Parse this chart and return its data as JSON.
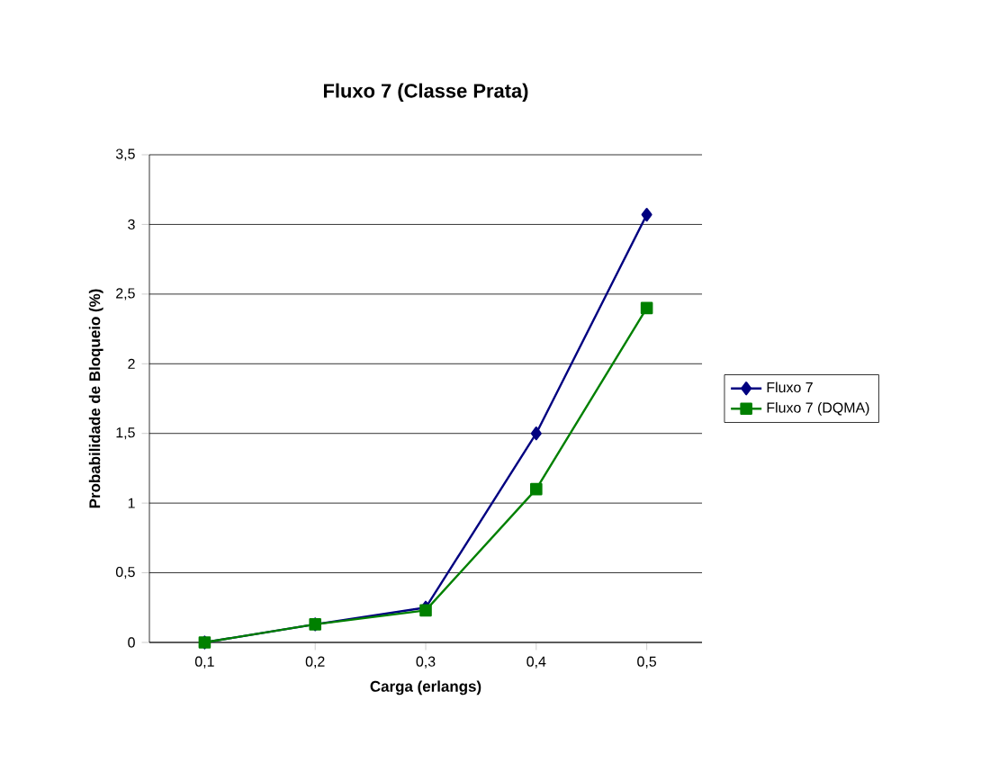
{
  "chart_data": {
    "type": "line",
    "title": "Fluxo 7 (Classe Prata)",
    "xlabel": "Carga (erlangs)",
    "ylabel": "Probabilidade de Bloqueio (%)",
    "categories": [
      "0,1",
      "0,2",
      "0,3",
      "0,4",
      "0,5"
    ],
    "series": [
      {
        "name": "Fluxo 7",
        "color": "#000080",
        "marker": "diamond",
        "values": [
          0,
          0.13,
          0.25,
          1.5,
          3.07
        ]
      },
      {
        "name": "Fluxo 7 (DQMA)",
        "color": "#008000",
        "marker": "square",
        "values": [
          0,
          0.13,
          0.23,
          1.1,
          2.4
        ]
      }
    ],
    "ylim": [
      0,
      3.5
    ],
    "yticks": [
      {
        "value": 0,
        "label": "0"
      },
      {
        "value": 0.5,
        "label": "0,5"
      },
      {
        "value": 1,
        "label": "1"
      },
      {
        "value": 1.5,
        "label": "1,5"
      },
      {
        "value": 2,
        "label": "2"
      },
      {
        "value": 2.5,
        "label": "2,5"
      },
      {
        "value": 3,
        "label": "3"
      },
      {
        "value": 3.5,
        "label": "3,5"
      }
    ],
    "grid": "y",
    "legend": "right",
    "line_style": "solid"
  }
}
